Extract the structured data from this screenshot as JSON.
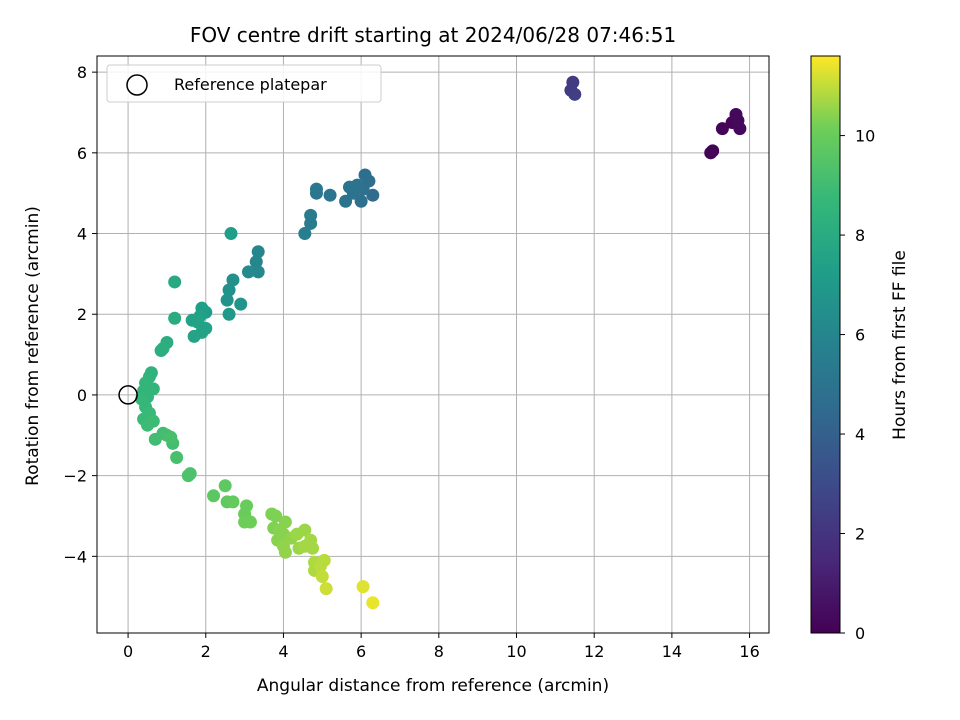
{
  "chart_data": {
    "type": "scatter",
    "title": "FOV centre drift starting at 2024/06/28 07:46:51",
    "xlabel": "Angular distance from reference (arcmin)",
    "ylabel": "Rotation from reference (arcmin)",
    "xlim": [
      -0.8,
      16.5
    ],
    "ylim": [
      -5.9,
      8.4
    ],
    "xticks": [
      0,
      2,
      4,
      6,
      8,
      10,
      12,
      14,
      16
    ],
    "yticks": [
      -4,
      -2,
      0,
      2,
      4,
      6,
      8
    ],
    "grid": true,
    "legend": {
      "placement": "top-left",
      "entries": [
        "Reference platepar"
      ]
    },
    "reference_point": {
      "x": 0,
      "y": 0
    },
    "colorbar": {
      "label": "Hours from first FF file",
      "range": [
        0,
        11.6
      ],
      "ticks": [
        0,
        2,
        4,
        6,
        8,
        10
      ],
      "colormap": "viridis"
    },
    "points": [
      {
        "x": 15.0,
        "y": 6.0,
        "h": 0.1
      },
      {
        "x": 15.05,
        "y": 6.05,
        "h": 0.1
      },
      {
        "x": 15.3,
        "y": 6.6,
        "h": 0.2
      },
      {
        "x": 15.55,
        "y": 6.75,
        "h": 0.2
      },
      {
        "x": 15.65,
        "y": 6.95,
        "h": 0.3
      },
      {
        "x": 15.7,
        "y": 6.8,
        "h": 0.3
      },
      {
        "x": 15.75,
        "y": 6.6,
        "h": 0.3
      },
      {
        "x": 11.4,
        "y": 7.55,
        "h": 2.3
      },
      {
        "x": 11.45,
        "y": 7.75,
        "h": 2.3
      },
      {
        "x": 11.5,
        "y": 7.45,
        "h": 2.4
      },
      {
        "x": 6.3,
        "y": 4.95,
        "h": 4.6
      },
      {
        "x": 6.2,
        "y": 5.3,
        "h": 4.7
      },
      {
        "x": 6.1,
        "y": 5.45,
        "h": 4.7
      },
      {
        "x": 6.05,
        "y": 5.1,
        "h": 4.8
      },
      {
        "x": 6.0,
        "y": 4.8,
        "h": 4.8
      },
      {
        "x": 5.9,
        "y": 5.2,
        "h": 4.9
      },
      {
        "x": 5.8,
        "y": 5.0,
        "h": 4.9
      },
      {
        "x": 5.7,
        "y": 5.15,
        "h": 5.0
      },
      {
        "x": 5.6,
        "y": 4.8,
        "h": 5.0
      },
      {
        "x": 5.2,
        "y": 4.95,
        "h": 5.1
      },
      {
        "x": 4.85,
        "y": 5.1,
        "h": 5.2
      },
      {
        "x": 4.85,
        "y": 5.0,
        "h": 5.2
      },
      {
        "x": 4.7,
        "y": 4.45,
        "h": 5.4
      },
      {
        "x": 4.7,
        "y": 4.25,
        "h": 5.4
      },
      {
        "x": 4.55,
        "y": 4.0,
        "h": 5.5
      },
      {
        "x": 3.35,
        "y": 3.55,
        "h": 6.0
      },
      {
        "x": 3.3,
        "y": 3.3,
        "h": 6.0
      },
      {
        "x": 3.35,
        "y": 3.05,
        "h": 6.1
      },
      {
        "x": 3.1,
        "y": 3.05,
        "h": 6.2
      },
      {
        "x": 2.7,
        "y": 2.85,
        "h": 6.5
      },
      {
        "x": 2.6,
        "y": 2.6,
        "h": 6.6
      },
      {
        "x": 2.55,
        "y": 2.35,
        "h": 6.7
      },
      {
        "x": 2.65,
        "y": 4.0,
        "h": 7.3
      },
      {
        "x": 2.9,
        "y": 2.25,
        "h": 6.8
      },
      {
        "x": 2.6,
        "y": 2.0,
        "h": 7.0
      },
      {
        "x": 2.0,
        "y": 2.05,
        "h": 7.2
      },
      {
        "x": 1.9,
        "y": 2.15,
        "h": 7.3
      },
      {
        "x": 1.85,
        "y": 1.95,
        "h": 7.4
      },
      {
        "x": 1.8,
        "y": 1.8,
        "h": 7.5
      },
      {
        "x": 2.0,
        "y": 1.65,
        "h": 7.5
      },
      {
        "x": 1.9,
        "y": 1.55,
        "h": 7.5
      },
      {
        "x": 1.7,
        "y": 1.45,
        "h": 7.6
      },
      {
        "x": 1.65,
        "y": 1.85,
        "h": 7.5
      },
      {
        "x": 1.2,
        "y": 2.8,
        "h": 7.9
      },
      {
        "x": 1.2,
        "y": 1.9,
        "h": 8.0
      },
      {
        "x": 1.0,
        "y": 1.3,
        "h": 8.1
      },
      {
        "x": 0.9,
        "y": 1.15,
        "h": 8.2
      },
      {
        "x": 0.85,
        "y": 1.1,
        "h": 8.2
      },
      {
        "x": 0.6,
        "y": 0.55,
        "h": 8.4
      },
      {
        "x": 0.55,
        "y": 0.45,
        "h": 8.4
      },
      {
        "x": 0.45,
        "y": 0.3,
        "h": 8.5
      },
      {
        "x": 0.65,
        "y": 0.15,
        "h": 8.5
      },
      {
        "x": 0.4,
        "y": 0.1,
        "h": 8.6
      },
      {
        "x": 0.5,
        "y": -0.05,
        "h": 8.6
      },
      {
        "x": 0.35,
        "y": -0.1,
        "h": 8.7
      },
      {
        "x": 0.45,
        "y": -0.3,
        "h": 8.7
      },
      {
        "x": 0.55,
        "y": -0.45,
        "h": 8.8
      },
      {
        "x": 0.4,
        "y": -0.6,
        "h": 8.8
      },
      {
        "x": 0.5,
        "y": -0.75,
        "h": 8.9
      },
      {
        "x": 0.65,
        "y": -0.65,
        "h": 8.9
      },
      {
        "x": 0.7,
        "y": -1.1,
        "h": 9.0
      },
      {
        "x": 0.9,
        "y": -0.95,
        "h": 9.0
      },
      {
        "x": 1.0,
        "y": -1.0,
        "h": 9.1
      },
      {
        "x": 1.15,
        "y": -1.2,
        "h": 9.1
      },
      {
        "x": 1.1,
        "y": -1.05,
        "h": 9.2
      },
      {
        "x": 1.25,
        "y": -1.55,
        "h": 9.2
      },
      {
        "x": 1.55,
        "y": -2.0,
        "h": 9.3
      },
      {
        "x": 1.6,
        "y": -1.95,
        "h": 9.3
      },
      {
        "x": 2.2,
        "y": -2.5,
        "h": 9.7
      },
      {
        "x": 2.5,
        "y": -2.25,
        "h": 9.8
      },
      {
        "x": 2.55,
        "y": -2.65,
        "h": 9.8
      },
      {
        "x": 2.7,
        "y": -2.65,
        "h": 9.9
      },
      {
        "x": 3.05,
        "y": -2.75,
        "h": 10.0
      },
      {
        "x": 3.0,
        "y": -2.95,
        "h": 10.0
      },
      {
        "x": 3.0,
        "y": -3.15,
        "h": 10.1
      },
      {
        "x": 3.15,
        "y": -3.15,
        "h": 10.1
      },
      {
        "x": 3.7,
        "y": -2.95,
        "h": 10.3
      },
      {
        "x": 3.8,
        "y": -3.0,
        "h": 10.3
      },
      {
        "x": 3.75,
        "y": -3.3,
        "h": 10.3
      },
      {
        "x": 3.9,
        "y": -3.35,
        "h": 10.4
      },
      {
        "x": 3.85,
        "y": -3.6,
        "h": 10.4
      },
      {
        "x": 4.0,
        "y": -3.45,
        "h": 10.4
      },
      {
        "x": 4.0,
        "y": -3.75,
        "h": 10.5
      },
      {
        "x": 4.05,
        "y": -3.15,
        "h": 10.4
      },
      {
        "x": 4.05,
        "y": -3.9,
        "h": 10.5
      },
      {
        "x": 4.2,
        "y": -3.55,
        "h": 10.5
      },
      {
        "x": 4.35,
        "y": -3.45,
        "h": 10.6
      },
      {
        "x": 4.4,
        "y": -3.8,
        "h": 10.6
      },
      {
        "x": 4.55,
        "y": -3.35,
        "h": 10.6
      },
      {
        "x": 4.55,
        "y": -3.75,
        "h": 10.7
      },
      {
        "x": 4.7,
        "y": -3.6,
        "h": 10.7
      },
      {
        "x": 4.75,
        "y": -3.8,
        "h": 10.7
      },
      {
        "x": 4.8,
        "y": -4.15,
        "h": 10.8
      },
      {
        "x": 4.8,
        "y": -4.35,
        "h": 10.8
      },
      {
        "x": 4.95,
        "y": -4.25,
        "h": 10.9
      },
      {
        "x": 5.05,
        "y": -4.1,
        "h": 10.9
      },
      {
        "x": 5.0,
        "y": -4.5,
        "h": 11.0
      },
      {
        "x": 5.1,
        "y": -4.8,
        "h": 11.1
      },
      {
        "x": 6.05,
        "y": -4.75,
        "h": 11.3
      },
      {
        "x": 6.3,
        "y": -5.15,
        "h": 11.4
      }
    ]
  }
}
